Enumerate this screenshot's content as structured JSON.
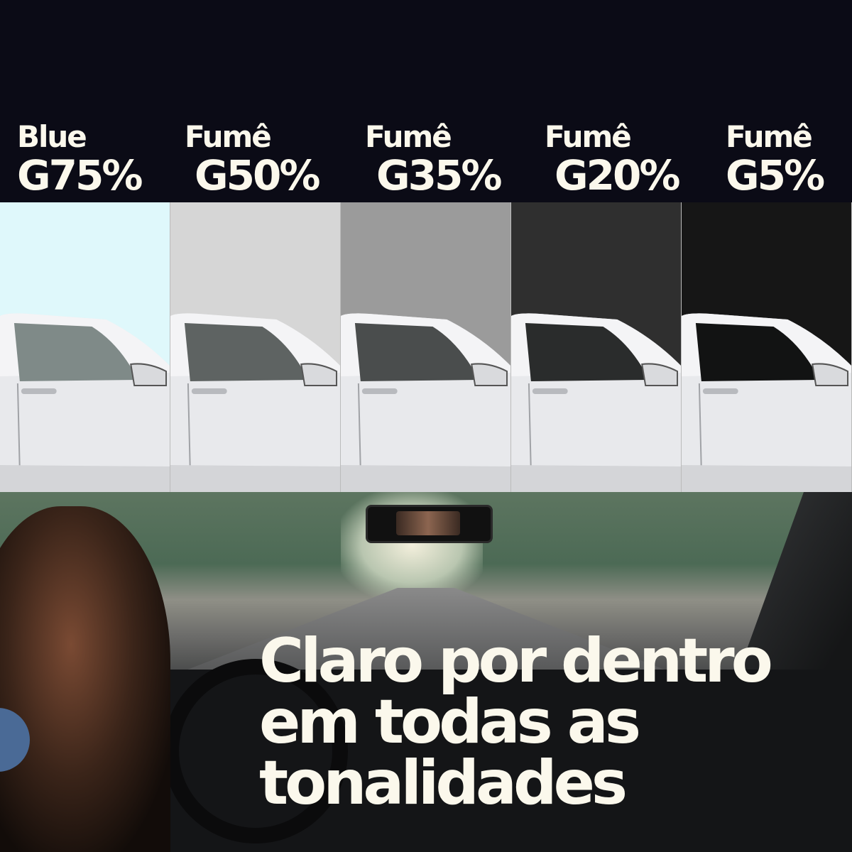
{
  "tints": [
    {
      "line1": "Blue",
      "line2": "G75%",
      "color": "#dff8fb"
    },
    {
      "line1": "Fumê",
      "line2": "G50%",
      "color": "#d6d6d6"
    },
    {
      "line1": "Fumê",
      "line2": "G35%",
      "color": "#9b9b9b"
    },
    {
      "line1": "Fumê",
      "line2": "G20%",
      "color": "#2f2f2f"
    },
    {
      "line1": "Fumê",
      "line2": "G5%",
      "color": "#161616"
    }
  ],
  "headline": {
    "line1": "Claro por dentro",
    "line2": "em todas as",
    "line3": "tonalidades"
  },
  "colors": {
    "background": "#0b0b16",
    "text": "#fbf8ec",
    "accent_dot": "#4a6a96"
  }
}
